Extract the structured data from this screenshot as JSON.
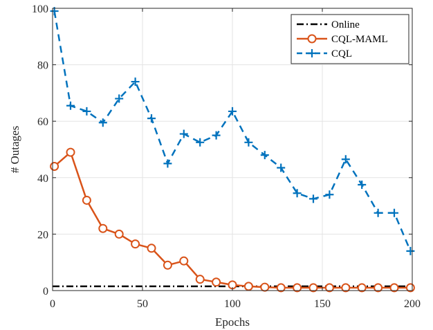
{
  "chart_data": {
    "type": "line",
    "xlabel": "Epochs",
    "ylabel": "# Outages",
    "xlim": [
      0,
      200
    ],
    "ylim": [
      0,
      100
    ],
    "xticks": [
      0,
      50,
      100,
      150,
      200
    ],
    "yticks": [
      0,
      20,
      40,
      60,
      80,
      100
    ],
    "xtick_labels": [
      "0",
      "50",
      "100",
      "150",
      "200"
    ],
    "ytick_labels": [
      "0",
      "20",
      "40",
      "60",
      "80",
      "100"
    ],
    "grid": true,
    "legend_position": "top-right",
    "series": [
      {
        "name": "Online",
        "color": "#000000",
        "style": "dash-dot",
        "marker": "none",
        "x": [
          0,
          200
        ],
        "y": [
          1.5,
          1.5
        ]
      },
      {
        "name": "CQL-MAML",
        "color": "#D95319",
        "style": "solid",
        "marker": "circle",
        "x": [
          1,
          10,
          19,
          28,
          37,
          46,
          55,
          64,
          73,
          82,
          91,
          100,
          109,
          118,
          127,
          136,
          145,
          154,
          163,
          172,
          181,
          190,
          199
        ],
        "y": [
          44,
          49,
          32,
          22,
          20,
          16.5,
          15,
          9,
          10.5,
          4,
          3,
          2,
          1.5,
          1.2,
          1,
          1,
          1,
          1,
          1,
          1,
          1,
          1,
          1
        ]
      },
      {
        "name": "CQL",
        "color": "#0072BD",
        "style": "dashed",
        "marker": "plus",
        "x": [
          1,
          10,
          19,
          28,
          37,
          46,
          55,
          64,
          73,
          82,
          91,
          100,
          109,
          118,
          127,
          136,
          145,
          154,
          163,
          172,
          181,
          190,
          199
        ],
        "y": [
          99,
          65.5,
          63.5,
          59.5,
          68,
          74,
          61,
          45,
          55.5,
          52.5,
          55,
          63.5,
          52.5,
          48,
          43.5,
          34.5,
          32.5,
          34,
          46.5,
          37.5,
          27.5,
          27.5,
          14
        ]
      }
    ]
  }
}
